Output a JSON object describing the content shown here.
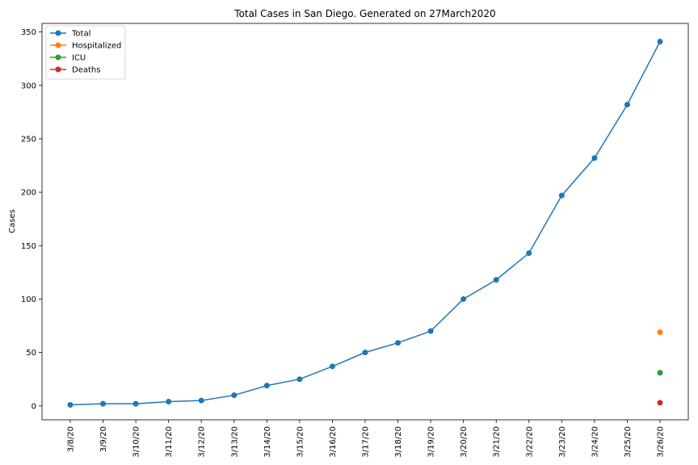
{
  "chart_data": {
    "type": "line",
    "title": "Total Cases in San Diego. Generated on 27March2020",
    "xlabel": "",
    "ylabel": "Cases",
    "categories": [
      "3/8/20",
      "3/9/20",
      "3/10/20",
      "3/11/20",
      "3/12/20",
      "3/13/20",
      "3/14/20",
      "3/15/20",
      "3/16/20",
      "3/17/20",
      "3/18/20",
      "3/19/20",
      "3/20/20",
      "3/21/20",
      "3/22/20",
      "3/23/20",
      "3/24/20",
      "3/25/20",
      "3/26/20"
    ],
    "ylim": [
      -13,
      358
    ],
    "yticks": [
      0,
      50,
      100,
      150,
      200,
      250,
      300,
      350
    ],
    "legend_position": "top-left",
    "grid": false,
    "series": [
      {
        "name": "Total",
        "color": "#1f77b4",
        "values": [
          1,
          2,
          2,
          4,
          5,
          10,
          19,
          25,
          37,
          50,
          59,
          70,
          100,
          118,
          143,
          197,
          232,
          282,
          341
        ]
      },
      {
        "name": "Hospitalized",
        "color": "#ff7f0e",
        "values": [
          null,
          null,
          null,
          null,
          null,
          null,
          null,
          null,
          null,
          null,
          null,
          null,
          null,
          null,
          null,
          null,
          null,
          null,
          69
        ]
      },
      {
        "name": "ICU",
        "color": "#2ca02c",
        "values": [
          null,
          null,
          null,
          null,
          null,
          null,
          null,
          null,
          null,
          null,
          null,
          null,
          null,
          null,
          null,
          null,
          null,
          null,
          31
        ]
      },
      {
        "name": "Deaths",
        "color": "#d62728",
        "values": [
          null,
          null,
          null,
          null,
          null,
          null,
          null,
          null,
          null,
          null,
          null,
          null,
          null,
          null,
          null,
          null,
          null,
          null,
          3
        ]
      }
    ]
  }
}
